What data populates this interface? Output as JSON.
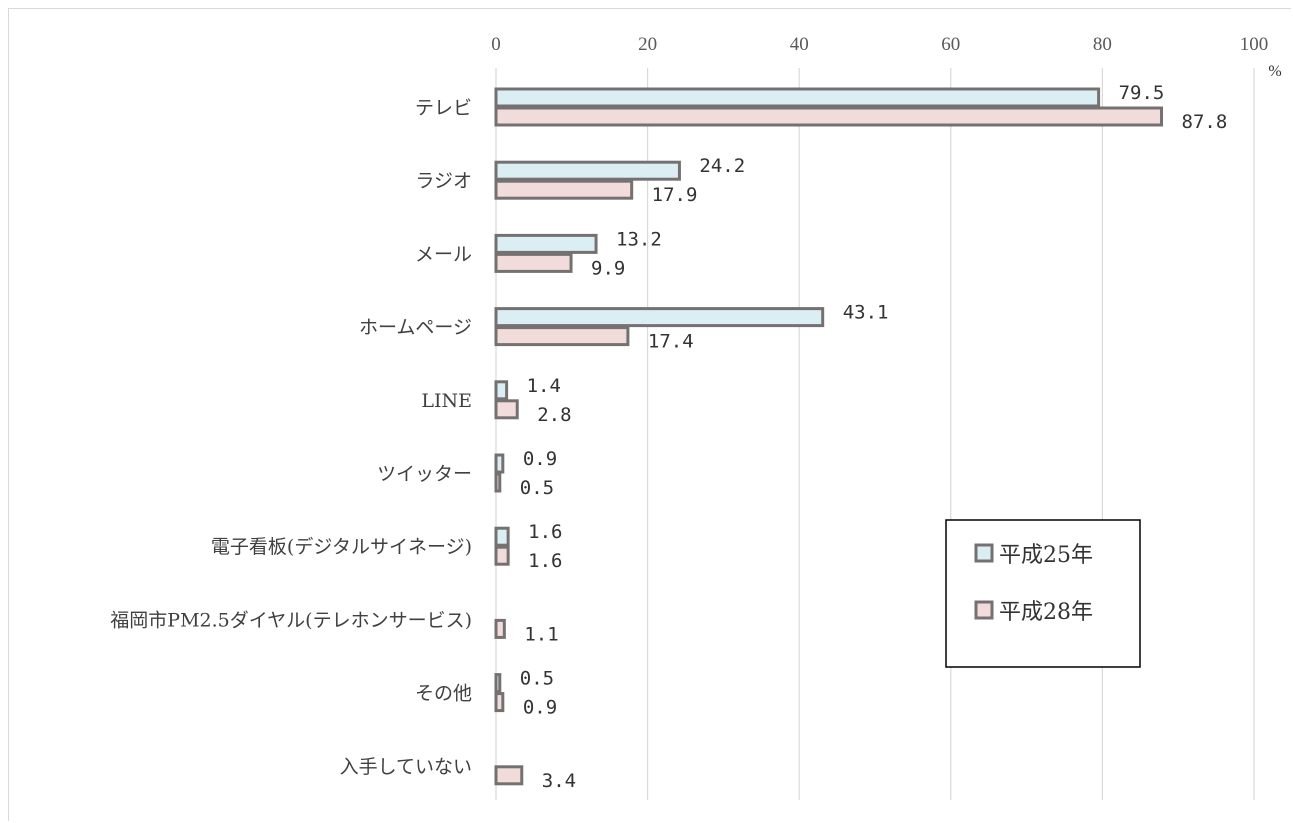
{
  "chart_data": {
    "type": "bar",
    "orientation": "horizontal",
    "unit": "%",
    "xlim": [
      0,
      100
    ],
    "x_ticks": [
      "0",
      "20",
      "40",
      "60",
      "80",
      "100"
    ],
    "grid": true,
    "legend_position": "right",
    "categories": [
      "テレビ",
      "ラジオ",
      "メール",
      "ホームページ",
      "LINE",
      "ツイッター",
      "電子看板(デジタルサイネージ)",
      "福岡市PM2.5ダイヤル(テレホンサービス)",
      "その他",
      "入手していない"
    ],
    "series": [
      {
        "name": "平成25年",
        "color": "#daeef3",
        "values": [
          79.5,
          24.2,
          13.2,
          43.1,
          1.4,
          0.9,
          1.6,
          null,
          0.5,
          null
        ],
        "labels": [
          "79.5",
          "24.2",
          "13.2",
          "43.1",
          "1.4",
          "0.9",
          "1.6",
          "",
          "0.5",
          ""
        ]
      },
      {
        "name": "平成28年",
        "color": "#f2dcdb",
        "values": [
          87.8,
          17.9,
          9.9,
          17.4,
          2.8,
          0.5,
          1.6,
          1.1,
          0.9,
          3.4
        ],
        "labels": [
          "87.8",
          "17.9",
          "9.9",
          "17.4",
          "2.8",
          "0.5",
          "1.6",
          "1.1",
          "0.9",
          "3.4"
        ]
      }
    ],
    "bar_edge_color": "#767171"
  }
}
